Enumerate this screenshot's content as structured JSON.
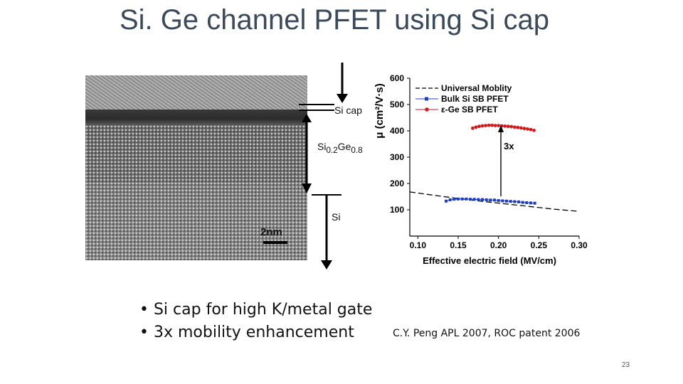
{
  "slide": {
    "title": "Si. Ge channel PFET using Si cap",
    "page_number": "23"
  },
  "tem_image": {
    "scale_label": "2nm",
    "layer_si_cap": "Si cap",
    "layer_sige": "Si0.2Ge0.8",
    "layer_si": "Si"
  },
  "bullets": [
    "• Si cap for high K/metal gate",
    "• 3x mobility enhancement"
  ],
  "citation": "C.Y. Peng APL 2007, ROC patent 2006",
  "chart_data": {
    "type": "line",
    "title": "",
    "xlabel": "Effective electric field (MV/cm)",
    "ylabel": "μ (cm²/V·s)",
    "xlim": [
      0.09,
      0.3
    ],
    "ylim": [
      0,
      600
    ],
    "xticks": [
      "0.10",
      "0.15",
      "0.20",
      "0.25",
      "0.30"
    ],
    "yticks": [
      "100",
      "200",
      "300",
      "400",
      "500",
      "600"
    ],
    "legend_position": "top",
    "annotation": "3x",
    "series": [
      {
        "name": "Universal Moblity",
        "style": "dash-dot",
        "color": "#000000",
        "x": [
          0.09,
          0.12,
          0.15,
          0.18,
          0.21,
          0.24,
          0.27,
          0.3
        ],
        "y": [
          168,
          155,
          143,
          132,
          122,
          112,
          102,
          94
        ]
      },
      {
        "name": "Bulk Si SB PFET",
        "style": "square-markers",
        "color": "#1f3fbf",
        "x": [
          0.135,
          0.14,
          0.145,
          0.15,
          0.155,
          0.16,
          0.165,
          0.17,
          0.175,
          0.18,
          0.185,
          0.19,
          0.195,
          0.2,
          0.205,
          0.21,
          0.215,
          0.22,
          0.225,
          0.23,
          0.235,
          0.24,
          0.245
        ],
        "y": [
          133,
          138,
          140,
          141,
          141,
          141,
          140,
          140,
          139,
          139,
          138,
          137,
          137,
          135,
          134,
          133,
          132,
          131,
          130,
          128,
          127,
          126,
          125
        ]
      },
      {
        "name": "ε-Ge SB PFET",
        "style": "circle-markers",
        "color": "#d01c1c",
        "x": [
          0.168,
          0.172,
          0.176,
          0.18,
          0.184,
          0.188,
          0.192,
          0.196,
          0.2,
          0.204,
          0.208,
          0.212,
          0.216,
          0.22,
          0.224,
          0.228,
          0.232,
          0.236,
          0.24,
          0.244
        ],
        "y": [
          410,
          414,
          417,
          419,
          420,
          421,
          421,
          420,
          420,
          419,
          418,
          417,
          416,
          414,
          413,
          411,
          409,
          407,
          405,
          402
        ]
      }
    ]
  }
}
